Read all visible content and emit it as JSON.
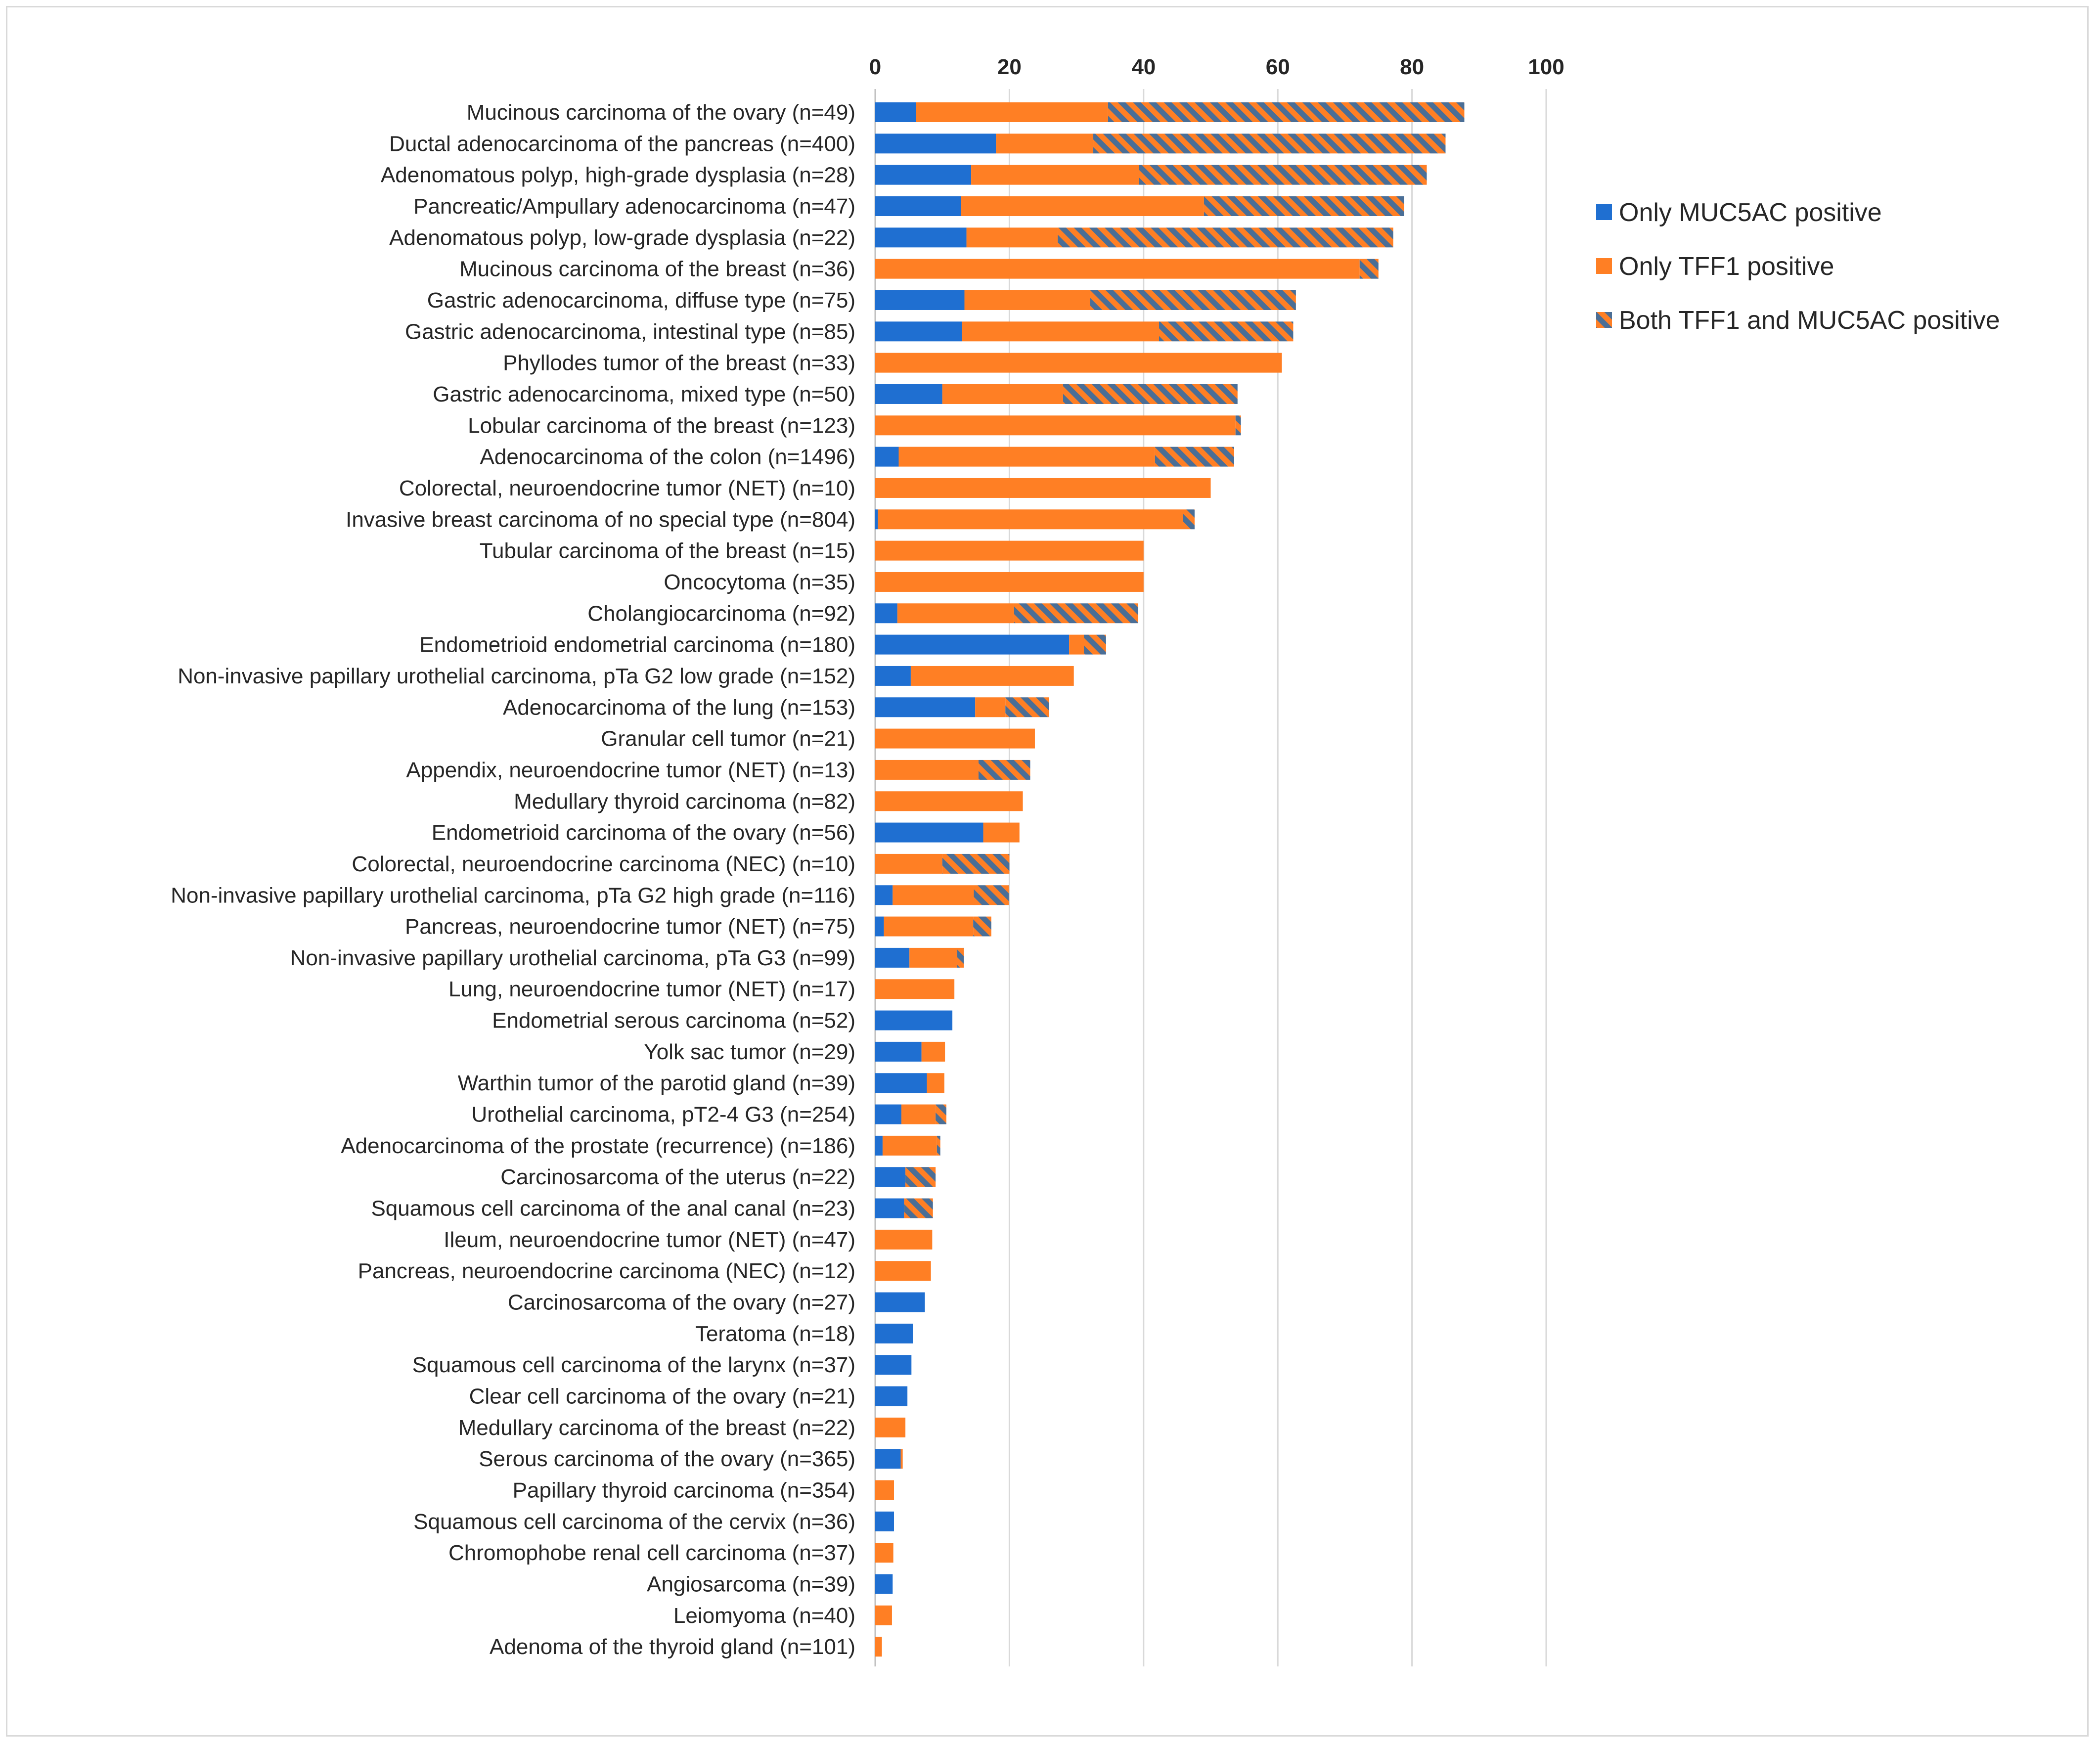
{
  "chart_data": {
    "type": "bar",
    "orientation": "horizontal",
    "stacked": true,
    "title": "",
    "xlabel": "",
    "ylabel": "",
    "xlim": [
      0,
      100
    ],
    "x_ticks": [
      "0",
      "20",
      "40",
      "60",
      "80",
      "100"
    ],
    "x_axis_position": "top",
    "grid": true,
    "legend_position": "right",
    "colors": {
      "muc5ac": "#1f6fd1",
      "tff1": "#ff7f24",
      "hatch": "#4a6e96"
    },
    "categories": [
      "Mucinous carcinoma of the ovary (n=49)",
      "Ductal adenocarcinoma of the pancreas (n=400)",
      "Adenomatous polyp, high-grade dysplasia (n=28)",
      "Pancreatic/Ampullary adenocarcinoma (n=47)",
      "Adenomatous polyp, low-grade dysplasia (n=22)",
      "Mucinous carcinoma of the breast (n=36)",
      "Gastric adenocarcinoma, diffuse type (n=75)",
      "Gastric adenocarcinoma, intestinal type (n=85)",
      "Phyllodes tumor of the breast (n=33)",
      "Gastric adenocarcinoma, mixed type (n=50)",
      "Lobular carcinoma of the breast (n=123)",
      "Adenocarcinoma of the colon (n=1496)",
      "Colorectal, neuroendocrine tumor (NET) (n=10)",
      "Invasive breast carcinoma of no special type (n=804)",
      "Tubular carcinoma of the breast (n=15)",
      "Oncocytoma (n=35)",
      "Cholangiocarcinoma (n=92)",
      "Endometrioid endometrial carcinoma (n=180)",
      "Non-invasive papillary urothelial carcinoma, pTa G2 low grade (n=152)",
      "Adenocarcinoma of the lung (n=153)",
      "Granular cell tumor (n=21)",
      "Appendix, neuroendocrine tumor (NET) (n=13)",
      "Medullary thyroid carcinoma (n=82)",
      "Endometrioid carcinoma of the ovary (n=56)",
      "Colorectal, neuroendocrine carcinoma (NEC) (n=10)",
      "Non-invasive papillary urothelial carcinoma, pTa G2 high grade (n=116)",
      "Pancreas, neuroendocrine tumor (NET) (n=75)",
      "Non-invasive papillary urothelial carcinoma, pTa G3 (n=99)",
      "Lung, neuroendocrine tumor (NET) (n=17)",
      "Endometrial serous carcinoma (n=52)",
      "Yolk sac tumor (n=29)",
      "Warthin tumor of the parotid gland (n=39)",
      "Urothelial carcinoma, pT2-4 G3 (n=254)",
      "Adenocarcinoma of the prostate (recurrence) (n=186)",
      "Carcinosarcoma of the uterus (n=22)",
      "Squamous cell carcinoma of the anal canal (n=23)",
      "Ileum, neuroendocrine tumor (NET) (n=47)",
      "Pancreas, neuroendocrine carcinoma (NEC) (n=12)",
      "Carcinosarcoma of the ovary (n=27)",
      "Teratoma (n=18)",
      "Squamous cell carcinoma of the larynx (n=37)",
      "Clear cell carcinoma of the ovary (n=21)",
      "Medullary carcinoma of the breast (n=22)",
      "Serous carcinoma of the ovary (n=365)",
      "Papillary thyroid carcinoma (n=354)",
      "Squamous cell carcinoma of the cervix (n=36)",
      "Chromophobe renal cell carcinoma (n=37)",
      "Angiosarcoma (n=39)",
      "Leiomyoma (n=40)",
      "Adenoma of the thyroid gland (n=101)"
    ],
    "series": [
      {
        "name": "Only MUC5AC positive",
        "key": "muc5ac",
        "values": [
          6.1,
          18.0,
          14.3,
          12.8,
          13.6,
          0,
          13.3,
          12.9,
          0,
          10.0,
          0,
          3.5,
          0,
          0.4,
          0,
          0,
          3.3,
          28.9,
          5.3,
          14.9,
          0,
          0,
          0,
          16.1,
          0,
          2.6,
          1.3,
          5.1,
          0,
          11.5,
          6.9,
          7.7,
          3.9,
          1.1,
          4.5,
          4.3,
          0,
          0,
          7.4,
          5.6,
          5.4,
          4.8,
          0,
          3.8,
          0,
          2.8,
          0,
          2.6,
          0,
          0
        ]
      },
      {
        "name": "Only TFF1 positive",
        "key": "tff1",
        "values": [
          28.6,
          14.5,
          25.0,
          36.2,
          13.6,
          72.2,
          18.7,
          29.4,
          60.6,
          18.0,
          53.7,
          38.2,
          50.0,
          45.5,
          40.0,
          40.0,
          17.4,
          2.2,
          24.3,
          4.5,
          23.8,
          15.4,
          22.0,
          5.4,
          10.0,
          12.1,
          13.3,
          7.1,
          11.8,
          0,
          3.5,
          2.6,
          5.1,
          8.1,
          0,
          0,
          8.5,
          8.3,
          0,
          0,
          0,
          0,
          4.5,
          0.3,
          2.8,
          0,
          2.7,
          0,
          2.5,
          1.0
        ]
      },
      {
        "name": "Both TFF1 and MUC5AC positive",
        "key": "both",
        "values": [
          53.1,
          52.5,
          42.9,
          29.8,
          50.0,
          2.8,
          30.7,
          20.0,
          0,
          26.0,
          0.8,
          11.8,
          0,
          1.7,
          0,
          0,
          18.5,
          3.3,
          0,
          6.5,
          0,
          7.7,
          0,
          0,
          10.0,
          5.2,
          2.7,
          1.0,
          0,
          0,
          0,
          0,
          1.6,
          0.5,
          4.5,
          4.3,
          0,
          0,
          0,
          0,
          0,
          0,
          0,
          0,
          0,
          0,
          0,
          0,
          0,
          0
        ]
      }
    ]
  }
}
